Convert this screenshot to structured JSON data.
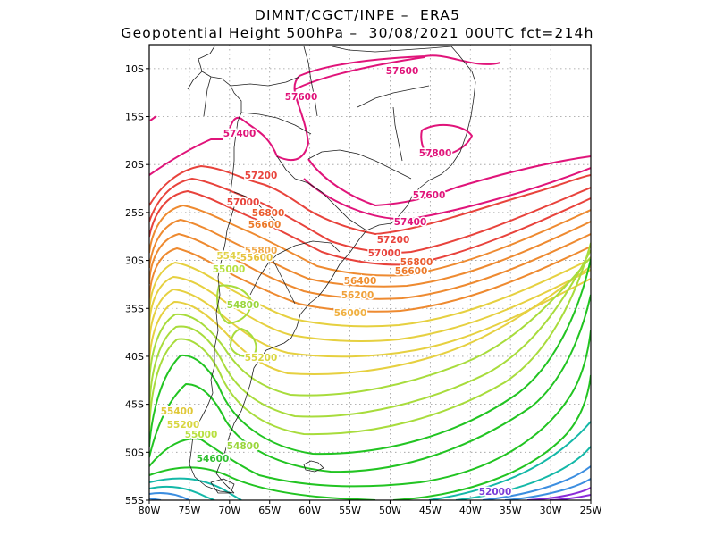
{
  "title": {
    "line1": "DIMNT/CGCT/INPE –  ERA5",
    "line2": "Geopotential Height 500hPa –  30/08/2021 00UTC fct=214h"
  },
  "map": {
    "lon_range": [
      -80,
      -25
    ],
    "lat_range": [
      -55,
      -7.5
    ],
    "gridlines": "dotted",
    "x_ticks": [
      "80W",
      "75W",
      "70W",
      "65W",
      "60W",
      "55W",
      "50W",
      "45W",
      "40W",
      "35W",
      "30W",
      "25W"
    ],
    "y_ticks": [
      "10S",
      "15S",
      "20S",
      "25S",
      "30S",
      "35S",
      "40S",
      "45S",
      "50S",
      "55S"
    ],
    "contour_labels": [
      {
        "text": "57600",
        "color": "#e0147a"
      },
      {
        "text": "57600",
        "color": "#e0147a"
      },
      {
        "text": "57400",
        "color": "#e0147a"
      },
      {
        "text": "57800",
        "color": "#e0147a"
      },
      {
        "text": "57600",
        "color": "#e0147a"
      },
      {
        "text": "57400",
        "color": "#e0147a"
      },
      {
        "text": "57200",
        "color": "#e8433c"
      },
      {
        "text": "57000",
        "color": "#e8433c"
      },
      {
        "text": "56800",
        "color": "#ea5b2e"
      },
      {
        "text": "56600",
        "color": "#ec7a2a"
      },
      {
        "text": "57200",
        "color": "#e8433c"
      },
      {
        "text": "57000",
        "color": "#e8433c"
      },
      {
        "text": "56800",
        "color": "#ea5b2e"
      },
      {
        "text": "56600",
        "color": "#ec7a2a"
      },
      {
        "text": "55800",
        "color": "#f0a84a"
      },
      {
        "text": "5545",
        "color": "#e2d24a"
      },
      {
        "text": "55600",
        "color": "#e8c23c"
      },
      {
        "text": "56400",
        "color": "#ef8f30"
      },
      {
        "text": "56200",
        "color": "#f0a038"
      },
      {
        "text": "56000",
        "color": "#f0b040"
      },
      {
        "text": "55000",
        "color": "#b8e040"
      },
      {
        "text": "54800",
        "color": "#9ad63c"
      },
      {
        "text": "55200",
        "color": "#d8d640"
      },
      {
        "text": "55400",
        "color": "#e0c838"
      },
      {
        "text": "55200",
        "color": "#d8d640"
      },
      {
        "text": "55000",
        "color": "#b8e040"
      },
      {
        "text": "54800",
        "color": "#9ad63c"
      },
      {
        "text": "54600",
        "color": "#30c030"
      },
      {
        "text": "52000",
        "color": "#7a3cd8"
      }
    ],
    "colors": {
      "pink": "#e0147a",
      "red": "#e8433c",
      "orange": "#ee8a30",
      "yellow": "#e6d040",
      "lime": "#a8dc3c",
      "green": "#22c422",
      "teal": "#14b8a8",
      "blue": "#3c8ee0",
      "purple": "#8a2ad8"
    }
  }
}
